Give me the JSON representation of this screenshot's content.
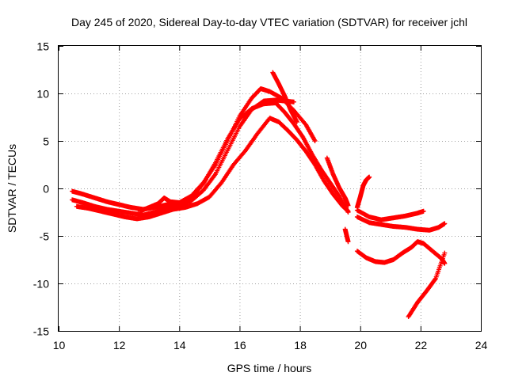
{
  "chart_data": {
    "type": "scatter",
    "title": "Day 245 of 2020, Sidereal Day-to-day VTEC variation (SDTVAR) for receiver jchl",
    "xlabel": "GPS time / hours",
    "ylabel": "SDTVAR / TECUs",
    "xlim": [
      10,
      24
    ],
    "ylim": [
      -15,
      15
    ],
    "xticks": [
      "10",
      "12",
      "14",
      "16",
      "18",
      "20",
      "22",
      "24"
    ],
    "yticks": [
      "15",
      "10",
      "5",
      "0",
      "-5",
      "-10",
      "-15"
    ],
    "grid": true,
    "marker": "+",
    "color": "#ff0000",
    "series": [
      {
        "name": "track-1",
        "points": [
          [
            10.45,
            -1.2
          ],
          [
            10.8,
            -1.5
          ],
          [
            11.2,
            -1.9
          ],
          [
            11.6,
            -2.2
          ],
          [
            12.0,
            -2.4
          ],
          [
            12.4,
            -2.6
          ],
          [
            12.8,
            -2.8
          ],
          [
            13.2,
            -2.5
          ],
          [
            13.6,
            -2.0
          ],
          [
            14.0,
            -1.8
          ],
          [
            14.4,
            -1.3
          ],
          [
            14.8,
            -0.2
          ],
          [
            15.2,
            1.5
          ],
          [
            15.6,
            4.0
          ],
          [
            16.0,
            6.5
          ],
          [
            16.4,
            8.3
          ],
          [
            16.8,
            9.2
          ],
          [
            17.2,
            9.3
          ],
          [
            17.5,
            9.2
          ],
          [
            17.8,
            9.1
          ]
        ]
      },
      {
        "name": "track-2",
        "points": [
          [
            10.45,
            -0.3
          ],
          [
            10.8,
            -0.6
          ],
          [
            11.2,
            -1.0
          ],
          [
            11.6,
            -1.4
          ],
          [
            12.0,
            -1.7
          ],
          [
            12.4,
            -2.0
          ],
          [
            12.8,
            -2.2
          ],
          [
            13.2,
            -2.0
          ],
          [
            13.6,
            -1.7
          ],
          [
            14.0,
            -1.5
          ],
          [
            14.4,
            -0.8
          ],
          [
            14.8,
            0.6
          ],
          [
            15.2,
            2.5
          ],
          [
            15.6,
            5.0
          ],
          [
            16.0,
            7.6
          ],
          [
            16.4,
            9.5
          ],
          [
            16.7,
            10.5
          ],
          [
            17.0,
            10.2
          ],
          [
            17.4,
            9.5
          ],
          [
            17.8,
            8.2
          ],
          [
            18.2,
            6.7
          ],
          [
            18.5,
            5.0
          ]
        ]
      },
      {
        "name": "track-3",
        "points": [
          [
            10.6,
            -1.9
          ],
          [
            11.0,
            -2.1
          ],
          [
            11.4,
            -2.4
          ],
          [
            11.8,
            -2.7
          ],
          [
            12.2,
            -3.0
          ],
          [
            12.6,
            -3.2
          ],
          [
            13.0,
            -3.0
          ],
          [
            13.4,
            -2.6
          ],
          [
            13.8,
            -2.2
          ],
          [
            14.2,
            -2.0
          ],
          [
            14.6,
            -1.6
          ],
          [
            15.0,
            -0.9
          ],
          [
            15.4,
            0.6
          ],
          [
            15.8,
            2.5
          ],
          [
            16.2,
            4.0
          ],
          [
            16.6,
            5.8
          ],
          [
            17.0,
            7.4
          ],
          [
            17.3,
            7.0
          ],
          [
            17.6,
            6.1
          ],
          [
            17.9,
            5.1
          ],
          [
            18.2,
            3.9
          ],
          [
            18.5,
            2.5
          ],
          [
            18.8,
            0.8
          ],
          [
            19.1,
            -0.6
          ],
          [
            19.4,
            -1.8
          ],
          [
            19.6,
            -2.4
          ]
        ]
      },
      {
        "name": "track-4",
        "points": [
          [
            12.7,
            -2.4
          ],
          [
            13.0,
            -2.0
          ],
          [
            13.3,
            -1.6
          ],
          [
            13.5,
            -1.0
          ],
          [
            13.7,
            -1.4
          ],
          [
            14.0,
            -1.5
          ],
          [
            14.4,
            -1.0
          ],
          [
            14.8,
            0.5
          ],
          [
            15.2,
            2.7
          ],
          [
            15.6,
            5.2
          ],
          [
            16.0,
            7.3
          ],
          [
            16.4,
            8.4
          ],
          [
            16.8,
            8.9
          ],
          [
            17.2,
            9.0
          ],
          [
            17.5,
            8.0
          ],
          [
            17.8,
            6.8
          ],
          [
            18.1,
            5.4
          ],
          [
            18.4,
            3.6
          ],
          [
            18.7,
            2.0
          ],
          [
            19.0,
            0.6
          ],
          [
            19.3,
            -0.8
          ],
          [
            19.6,
            -2.5
          ]
        ]
      },
      {
        "name": "track-5",
        "points": [
          [
            17.1,
            12.2
          ],
          [
            17.3,
            11.0
          ],
          [
            17.5,
            9.7
          ],
          [
            17.7,
            8.2
          ],
          [
            17.9,
            7.0
          ]
        ]
      },
      {
        "name": "track-6",
        "points": [
          [
            18.9,
            3.2
          ],
          [
            19.1,
            1.5
          ],
          [
            19.3,
            0.1
          ],
          [
            19.5,
            -1.0
          ],
          [
            19.6,
            -1.8
          ]
        ]
      },
      {
        "name": "track-7",
        "points": [
          [
            19.5,
            -4.3
          ],
          [
            19.6,
            -5.6
          ]
        ]
      },
      {
        "name": "track-8",
        "points": [
          [
            19.9,
            -2.0
          ],
          [
            20.0,
            -0.9
          ],
          [
            20.1,
            0.3
          ],
          [
            20.2,
            0.9
          ],
          [
            20.3,
            1.2
          ]
        ]
      },
      {
        "name": "track-9",
        "points": [
          [
            19.9,
            -2.3
          ],
          [
            20.3,
            -3.0
          ],
          [
            20.7,
            -3.3
          ],
          [
            21.1,
            -3.1
          ],
          [
            21.5,
            -2.9
          ],
          [
            21.9,
            -2.6
          ],
          [
            22.1,
            -2.4
          ]
        ]
      },
      {
        "name": "track-10",
        "points": [
          [
            19.9,
            -3.0
          ],
          [
            20.3,
            -3.6
          ],
          [
            20.7,
            -3.8
          ],
          [
            21.1,
            -4.0
          ],
          [
            21.5,
            -4.1
          ],
          [
            21.9,
            -4.3
          ],
          [
            22.3,
            -4.4
          ],
          [
            22.6,
            -4.1
          ],
          [
            22.8,
            -3.7
          ]
        ]
      },
      {
        "name": "track-11",
        "points": [
          [
            19.9,
            -6.6
          ],
          [
            20.2,
            -7.3
          ],
          [
            20.5,
            -7.7
          ],
          [
            20.8,
            -7.8
          ],
          [
            21.1,
            -7.5
          ],
          [
            21.4,
            -6.8
          ],
          [
            21.7,
            -6.2
          ],
          [
            21.9,
            -5.6
          ],
          [
            22.1,
            -5.8
          ],
          [
            22.4,
            -6.6
          ],
          [
            22.7,
            -7.4
          ],
          [
            22.8,
            -7.9
          ]
        ]
      },
      {
        "name": "track-12",
        "points": [
          [
            21.6,
            -13.5
          ],
          [
            21.9,
            -12.0
          ],
          [
            22.2,
            -10.8
          ],
          [
            22.5,
            -9.5
          ],
          [
            22.8,
            -6.8
          ]
        ]
      }
    ]
  }
}
